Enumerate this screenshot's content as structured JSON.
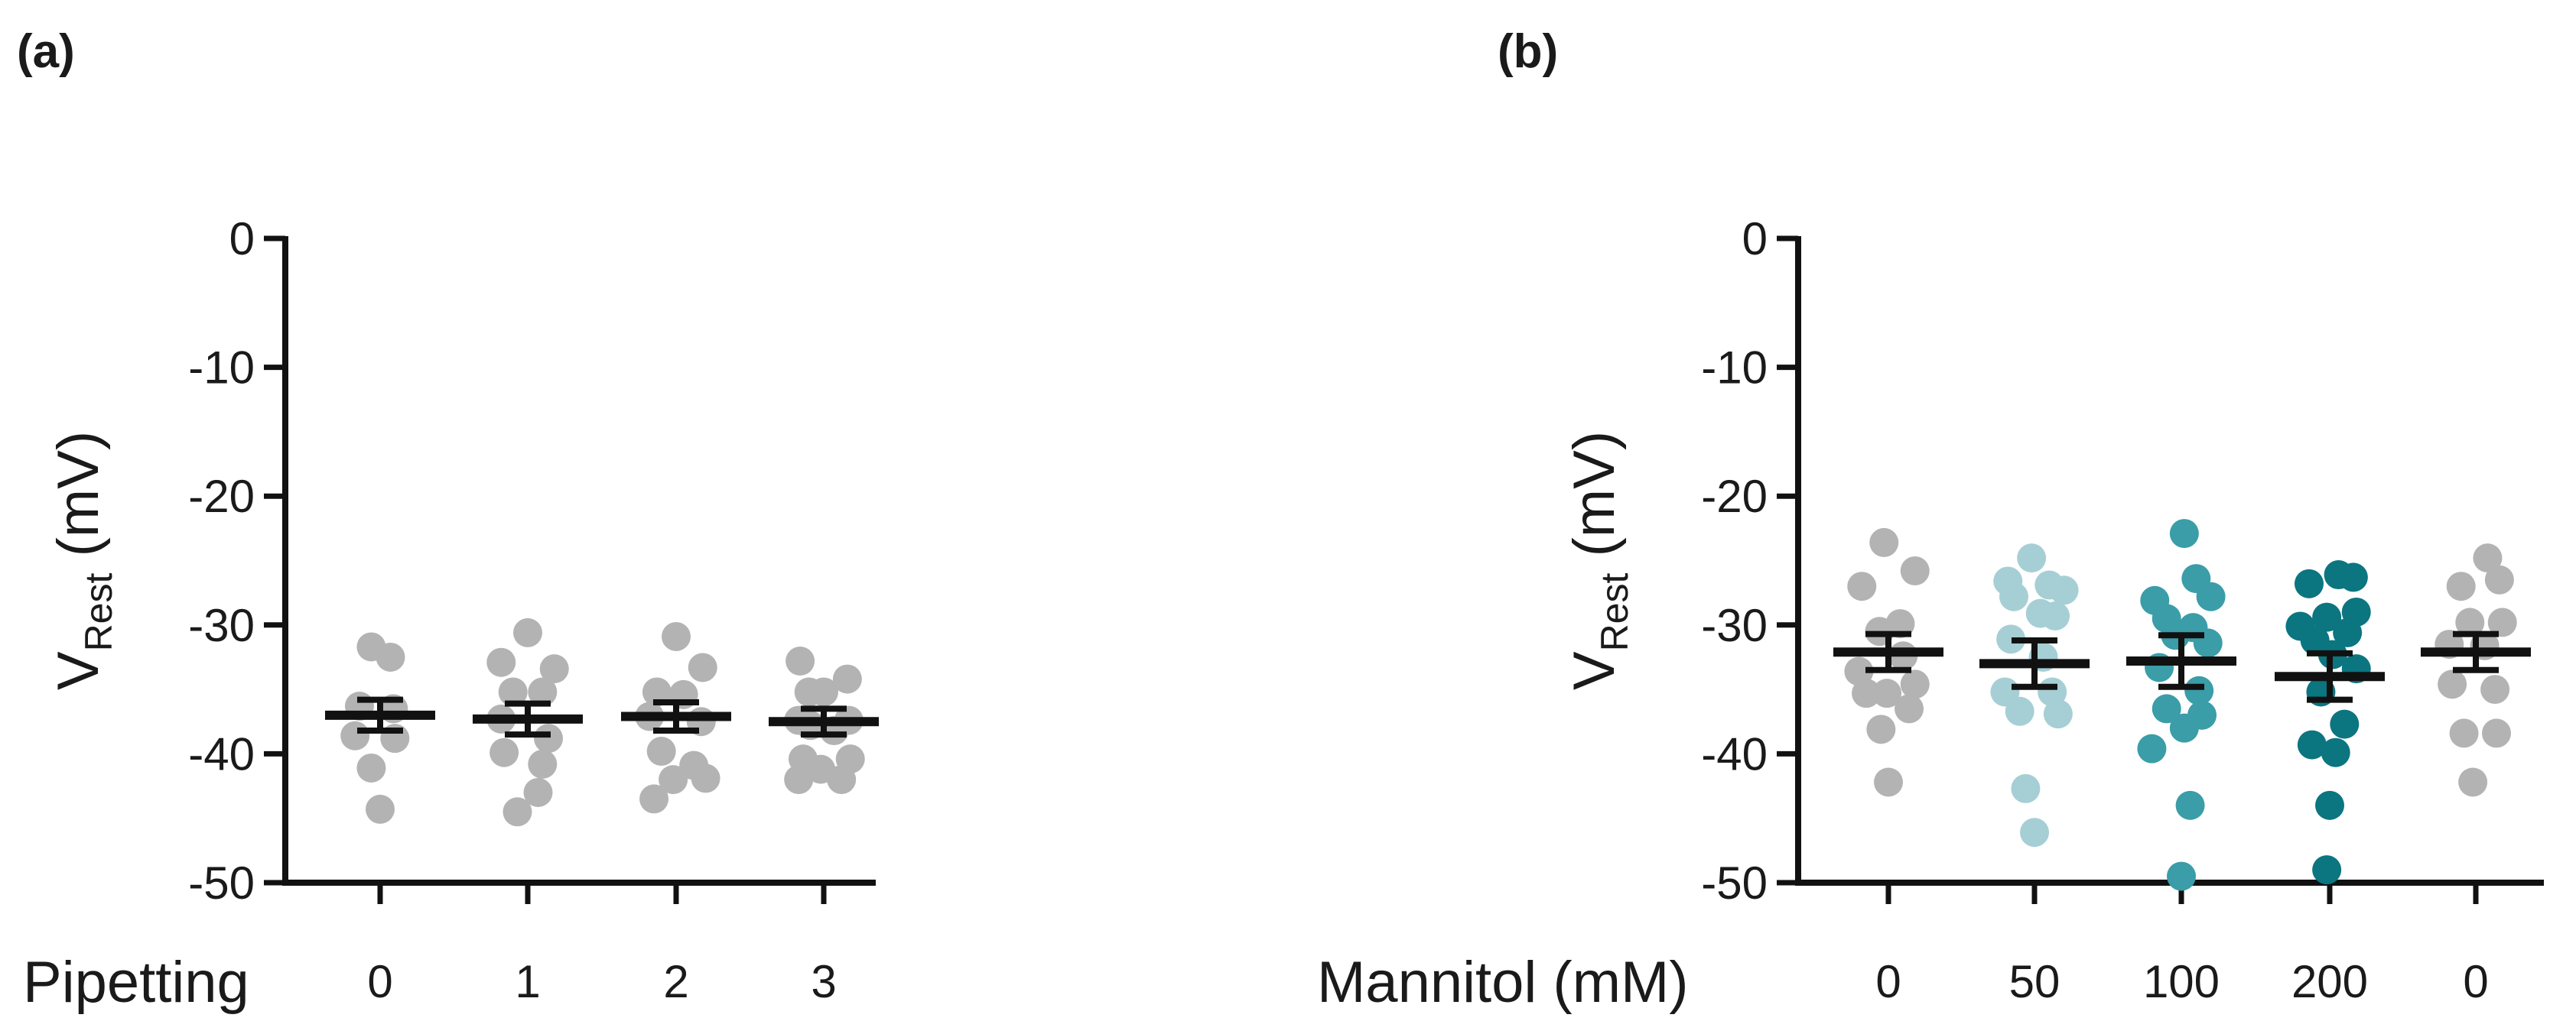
{
  "colors": {
    "grey": "#b3b3b3",
    "light_teal": "#a6cfd5",
    "mid_teal": "#3a9da8",
    "dark_teal": "#0b7580",
    "axis": "#111111"
  },
  "chart_data": [
    {
      "type": "scatter",
      "panel_label": "(a)",
      "xlabel": "Pipetting",
      "ylabel_main": "V",
      "ylabel_sub": "Rest",
      "ylabel_unit": "(mV)",
      "ylim": [
        -50,
        0
      ],
      "yticks": [
        "0",
        "-10",
        "-20",
        "-30",
        "-40",
        "-50"
      ],
      "categories": [
        "0",
        "1",
        "2",
        "3"
      ],
      "series": [
        {
          "color": "#b3b3b3",
          "mean": -37.0,
          "sem": 1.2,
          "points": [
            [
              -0.06,
              -31.7
            ],
            [
              0.07,
              -32.5
            ],
            [
              -0.14,
              -36.3
            ],
            [
              0.09,
              -36.5
            ],
            [
              -0.17,
              -38.6
            ],
            [
              0.1,
              -38.8
            ],
            [
              -0.06,
              -41.1
            ],
            [
              0.0,
              -44.3
            ]
          ]
        },
        {
          "color": "#b3b3b3",
          "mean": -37.3,
          "sem": 1.2,
          "points": [
            [
              0.0,
              -30.6
            ],
            [
              -0.18,
              -32.9
            ],
            [
              0.18,
              -33.4
            ],
            [
              -0.1,
              -35.2
            ],
            [
              0.1,
              -35.2
            ],
            [
              -0.18,
              -37.3
            ],
            [
              0.14,
              -38.8
            ],
            [
              -0.16,
              -39.9
            ],
            [
              0.1,
              -40.8
            ],
            [
              0.07,
              -43.0
            ],
            [
              -0.07,
              -44.5
            ]
          ]
        },
        {
          "color": "#b3b3b3",
          "mean": -37.1,
          "sem": 1.1,
          "points": [
            [
              0.0,
              -30.9
            ],
            [
              0.18,
              -33.3
            ],
            [
              -0.13,
              -35.2
            ],
            [
              0.05,
              -35.4
            ],
            [
              -0.18,
              -37.1
            ],
            [
              0.17,
              -37.5
            ],
            [
              -0.1,
              -39.8
            ],
            [
              0.12,
              -40.9
            ],
            [
              0.2,
              -41.9
            ],
            [
              -0.02,
              -42.0
            ],
            [
              -0.15,
              -43.5
            ]
          ]
        },
        {
          "color": "#b3b3b3",
          "mean": -37.5,
          "sem": 1.0,
          "points": [
            [
              -0.16,
              -32.8
            ],
            [
              0.16,
              -34.2
            ],
            [
              -0.1,
              -35.2
            ],
            [
              0.0,
              -35.2
            ],
            [
              -0.17,
              -37.4
            ],
            [
              0.17,
              -37.4
            ],
            [
              -0.09,
              -37.8
            ],
            [
              0.07,
              -38.2
            ],
            [
              -0.14,
              -40.4
            ],
            [
              0.18,
              -40.4
            ],
            [
              -0.17,
              -42.0
            ],
            [
              0.12,
              -42.0
            ],
            [
              -0.02,
              -41.2
            ]
          ]
        }
      ]
    },
    {
      "type": "scatter",
      "panel_label": "(b)",
      "xlabel": "Mannitol (mM)",
      "ylabel_main": "V",
      "ylabel_sub": "Rest",
      "ylabel_unit": "(mV)",
      "ylim": [
        -50,
        0
      ],
      "yticks": [
        "0",
        "-10",
        "-20",
        "-30",
        "-40",
        "-50"
      ],
      "categories": [
        "0",
        "50",
        "100",
        "200",
        "0"
      ],
      "series": [
        {
          "color": "#b3b3b3",
          "mean": -32.1,
          "sem": 1.4,
          "points": [
            [
              -0.03,
              -23.6
            ],
            [
              0.18,
              -25.8
            ],
            [
              -0.18,
              -27.0
            ],
            [
              0.08,
              -29.9
            ],
            [
              -0.06,
              -30.5
            ],
            [
              0.1,
              -32.4
            ],
            [
              -0.2,
              -33.6
            ],
            [
              0.18,
              -34.6
            ],
            [
              -0.15,
              -35.3
            ],
            [
              -0.01,
              -35.3
            ],
            [
              0.14,
              -36.5
            ],
            [
              -0.05,
              -38.1
            ],
            [
              0.0,
              -42.2
            ]
          ]
        },
        {
          "color": "#a6cfd5",
          "mean": -33.0,
          "sem": 1.8,
          "points": [
            [
              -0.02,
              -24.8
            ],
            [
              -0.18,
              -26.6
            ],
            [
              0.1,
              -26.9
            ],
            [
              0.2,
              -27.3
            ],
            [
              -0.14,
              -27.8
            ],
            [
              0.04,
              -29.1
            ],
            [
              0.14,
              -29.3
            ],
            [
              -0.16,
              -31.1
            ],
            [
              0.06,
              -32.5
            ],
            [
              -0.2,
              -35.2
            ],
            [
              0.12,
              -35.2
            ],
            [
              -0.1,
              -36.7
            ],
            [
              0.16,
              -36.9
            ],
            [
              -0.06,
              -42.7
            ],
            [
              0.0,
              -46.1
            ]
          ]
        },
        {
          "color": "#3a9da8",
          "mean": -32.8,
          "sem": 2.0,
          "points": [
            [
              0.02,
              -22.9
            ],
            [
              0.1,
              -26.4
            ],
            [
              -0.18,
              -28.1
            ],
            [
              0.2,
              -27.8
            ],
            [
              -0.1,
              -29.5
            ],
            [
              0.08,
              -30.2
            ],
            [
              -0.04,
              -30.8
            ],
            [
              0.18,
              -31.4
            ],
            [
              -0.15,
              -33.3
            ],
            [
              0.12,
              -35.1
            ],
            [
              -0.1,
              -36.5
            ],
            [
              0.14,
              -37.0
            ],
            [
              0.02,
              -38.0
            ],
            [
              -0.2,
              -39.6
            ],
            [
              0.06,
              -44.0
            ],
            [
              0.0,
              -49.5
            ]
          ]
        },
        {
          "color": "#0b7580",
          "mean": -34.0,
          "sem": 1.8,
          "points": [
            [
              0.06,
              -26.1
            ],
            [
              0.16,
              -26.3
            ],
            [
              -0.14,
              -26.8
            ],
            [
              0.18,
              -29.0
            ],
            [
              -0.02,
              -29.4
            ],
            [
              -0.2,
              -30.1
            ],
            [
              0.12,
              -30.6
            ],
            [
              -0.1,
              -31.2
            ],
            [
              0.02,
              -32.3
            ],
            [
              0.18,
              -33.4
            ],
            [
              -0.06,
              -35.2
            ],
            [
              0.1,
              -37.7
            ],
            [
              -0.12,
              -39.3
            ],
            [
              0.04,
              -39.9
            ],
            [
              0.0,
              -44.0
            ],
            [
              -0.02,
              -49.0
            ]
          ]
        },
        {
          "color": "#b3b3b3",
          "mean": -32.1,
          "sem": 1.4,
          "points": [
            [
              0.08,
              -24.8
            ],
            [
              0.16,
              -26.5
            ],
            [
              -0.1,
              -27.0
            ],
            [
              -0.04,
              -29.8
            ],
            [
              0.18,
              -29.8
            ],
            [
              -0.18,
              -31.5
            ],
            [
              0.06,
              -31.6
            ],
            [
              -0.16,
              -34.6
            ],
            [
              0.13,
              -35.0
            ],
            [
              -0.08,
              -38.4
            ],
            [
              0.14,
              -38.4
            ],
            [
              -0.02,
              -42.2
            ]
          ]
        }
      ]
    }
  ]
}
